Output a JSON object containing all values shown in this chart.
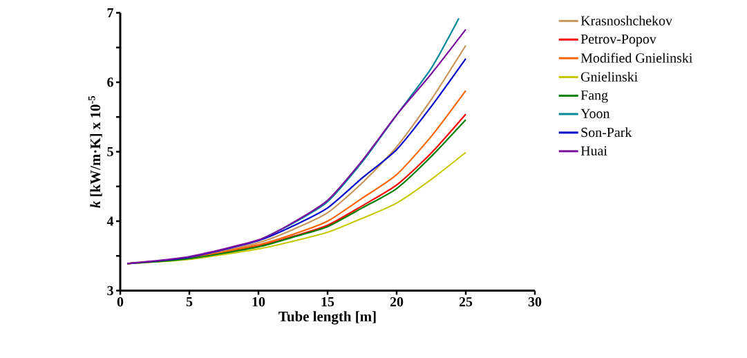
{
  "chart_data": {
    "type": "line",
    "xlabel": "Tube length [m]",
    "ylabel": "*k* [kW/m·K] x 10$^{-5}$",
    "x": [
      0.5,
      5,
      10,
      12.5,
      15,
      17.5,
      20,
      22.5,
      25
    ],
    "xlim": [
      0,
      30
    ],
    "xticks": [
      0,
      5,
      10,
      15,
      20,
      25,
      30
    ],
    "ylim": [
      3,
      7
    ],
    "yticks": [
      3,
      {
        "value": 3.5,
        "label": null
      },
      4,
      {
        "value": 4.5,
        "label": null
      },
      5,
      {
        "value": 5.5,
        "label": null
      },
      6,
      {
        "value": 6.5,
        "label": null
      },
      7
    ],
    "grid": false,
    "legend": "right",
    "marker": "none",
    "line_style": "solid",
    "series": [
      {
        "name": "Krasnoshchekov",
        "color": "#c8965a",
        "values": [
          3.39,
          3.47,
          3.69,
          3.88,
          4.12,
          4.55,
          5.07,
          5.75,
          6.53
        ]
      },
      {
        "name": "Petrov-Popov",
        "color": "#ff0000",
        "values": [
          3.39,
          3.46,
          3.64,
          3.78,
          3.94,
          4.22,
          4.52,
          4.98,
          5.54
        ]
      },
      {
        "name": "Modified Gnielinski",
        "color": "#ff6600",
        "values": [
          3.39,
          3.47,
          3.66,
          3.81,
          4.0,
          4.33,
          4.67,
          5.22,
          5.88
        ]
      },
      {
        "name": "Gnielinski",
        "color": "#c8c800",
        "values": [
          3.39,
          3.45,
          3.6,
          3.71,
          3.84,
          4.04,
          4.26,
          4.6,
          4.99
        ]
      },
      {
        "name": "Fang",
        "color": "#008000",
        "values": [
          3.39,
          3.46,
          3.63,
          3.77,
          3.92,
          4.19,
          4.47,
          4.93,
          5.46
        ]
      },
      {
        "name": "Yoon",
        "color": "#008899",
        "x": [
          10,
          12.5,
          15,
          17.5,
          20,
          22.5,
          24.5
        ],
        "values": [
          3.72,
          3.97,
          4.28,
          4.85,
          5.53,
          6.2,
          6.92
        ]
      },
      {
        "name": "Son-Park",
        "color": "#0000cc",
        "values": [
          3.39,
          3.48,
          3.72,
          3.93,
          4.19,
          4.62,
          5.03,
          5.65,
          6.34
        ]
      },
      {
        "name": "Huai",
        "color": "#7a0fa0",
        "values": [
          3.39,
          3.49,
          3.73,
          3.98,
          4.3,
          4.87,
          5.53,
          6.12,
          6.76
        ]
      }
    ]
  }
}
